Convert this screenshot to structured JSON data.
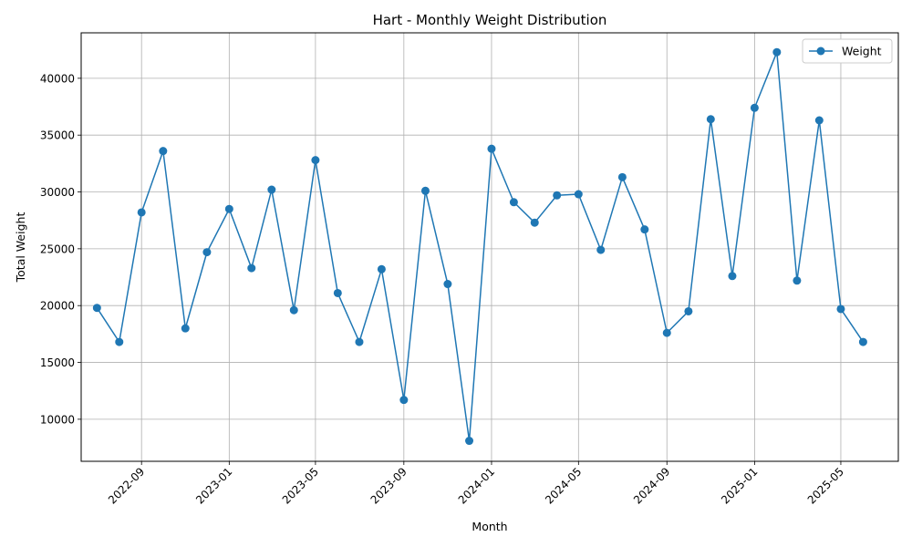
{
  "chart_data": {
    "type": "line",
    "title": "Hart - Monthly Weight Distribution",
    "xlabel": "Month",
    "ylabel": "Total Weight",
    "x_ticks": [
      "2022-09",
      "2023-01",
      "2023-05",
      "2023-09",
      "2024-01",
      "2024-05",
      "2024-09",
      "2025-01",
      "2025-05"
    ],
    "y_ticks": [
      10000,
      15000,
      20000,
      25000,
      30000,
      35000,
      40000
    ],
    "ylim": [
      6300,
      44000
    ],
    "xlim": [
      "2022-06-09",
      "2025-07-20"
    ],
    "grid": true,
    "legend_position": "top-right",
    "series": [
      {
        "name": "Weight",
        "color": "#1f77b4",
        "marker": "circle",
        "x": [
          "2022-07",
          "2022-08",
          "2022-09",
          "2022-10",
          "2022-11",
          "2022-12",
          "2023-01",
          "2023-02",
          "2023-03",
          "2023-04",
          "2023-05",
          "2023-06",
          "2023-07",
          "2023-08",
          "2023-09",
          "2023-10",
          "2023-11",
          "2023-12",
          "2024-01",
          "2024-02",
          "2024-03",
          "2024-04",
          "2024-05",
          "2024-06",
          "2024-07",
          "2024-08",
          "2024-09",
          "2024-10",
          "2024-11",
          "2024-12",
          "2025-01",
          "2025-02",
          "2025-03",
          "2025-04",
          "2025-05",
          "2025-06"
        ],
        "values": [
          19800,
          16800,
          28200,
          33600,
          18000,
          24700,
          28500,
          23300,
          30200,
          19600,
          32800,
          21100,
          16800,
          23200,
          11700,
          30100,
          21900,
          8100,
          33800,
          29100,
          27300,
          29700,
          29800,
          24900,
          31300,
          26700,
          17600,
          19500,
          36400,
          22600,
          37400,
          42300,
          22200,
          36300,
          19700,
          16800
        ]
      }
    ]
  }
}
